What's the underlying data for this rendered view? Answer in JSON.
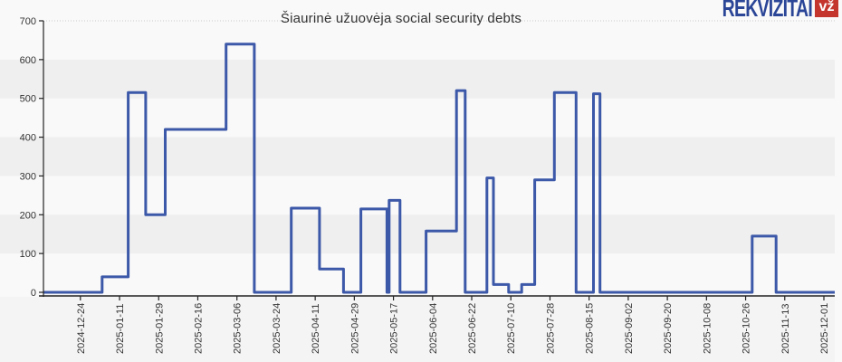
{
  "logo": {
    "text": "REKVIZITAI",
    "badge": "vž",
    "text_color": "#2b4697",
    "badge_color": "#c4352e"
  },
  "chart_data": {
    "type": "line",
    "step": "after",
    "title": "Šiaurinė užuovėja social security debts",
    "xlabel": "",
    "ylabel": "",
    "ylim": [
      0,
      700
    ],
    "y_ticks": [
      0,
      100,
      200,
      300,
      400,
      500,
      600,
      700
    ],
    "x_tick_labels": [
      "2024-12-24",
      "2025-01-11",
      "2025-01-29",
      "2025-02-16",
      "2025-03-06",
      "2025-03-24",
      "2025-04-11",
      "2025-04-29",
      "2025-05-17",
      "2025-06-04",
      "2025-06-22",
      "2025-07-10",
      "2025-07-28",
      "2025-08-15",
      "2025-09-02",
      "2025-09-20",
      "2025-10-08",
      "2025-10-26",
      "2025-11-13",
      "2025-12-01"
    ],
    "x_range": [
      "2024-12-07",
      "2025-12-06"
    ],
    "legend": "none",
    "grid": "alternating horizontal bands + dotted top gridline",
    "band_pairs": [
      [
        100,
        200
      ],
      [
        300,
        400
      ],
      [
        500,
        600
      ]
    ],
    "band_color": "#efefef",
    "background": "#f9f9f9",
    "label_strip_color": "#f4f4f4",
    "axis_color": "#222222",
    "tick_label_color": "#333333",
    "top_gridline": {
      "value": 700,
      "style": "dotted",
      "color": "#cccccc"
    },
    "series": [
      {
        "name": "Social security debt",
        "color": "#3c58a8",
        "points": [
          {
            "date": "2024-12-07",
            "value": 0
          },
          {
            "date": "2025-01-03",
            "value": 40
          },
          {
            "date": "2025-01-15",
            "value": 515
          },
          {
            "date": "2025-01-23",
            "value": 200
          },
          {
            "date": "2025-02-01",
            "value": 420
          },
          {
            "date": "2025-03-01",
            "value": 640
          },
          {
            "date": "2025-03-14",
            "value": 0
          },
          {
            "date": "2025-03-31",
            "value": 217
          },
          {
            "date": "2025-04-13",
            "value": 60
          },
          {
            "date": "2025-04-24",
            "value": 0
          },
          {
            "date": "2025-05-02",
            "value": 215
          },
          {
            "date": "2025-05-14",
            "value": 0
          },
          {
            "date": "2025-05-15",
            "value": 237
          },
          {
            "date": "2025-05-20",
            "value": 0
          },
          {
            "date": "2025-06-01",
            "value": 158
          },
          {
            "date": "2025-06-15",
            "value": 520
          },
          {
            "date": "2025-06-19",
            "value": 0
          },
          {
            "date": "2025-06-29",
            "value": 295
          },
          {
            "date": "2025-07-02",
            "value": 20
          },
          {
            "date": "2025-07-09",
            "value": 0
          },
          {
            "date": "2025-07-15",
            "value": 20
          },
          {
            "date": "2025-07-21",
            "value": 290
          },
          {
            "date": "2025-07-30",
            "value": 515
          },
          {
            "date": "2025-08-09",
            "value": 0
          },
          {
            "date": "2025-08-17",
            "value": 512
          },
          {
            "date": "2025-08-20",
            "value": 0
          },
          {
            "date": "2025-10-29",
            "value": 145
          },
          {
            "date": "2025-11-09",
            "value": 0
          }
        ]
      }
    ]
  }
}
